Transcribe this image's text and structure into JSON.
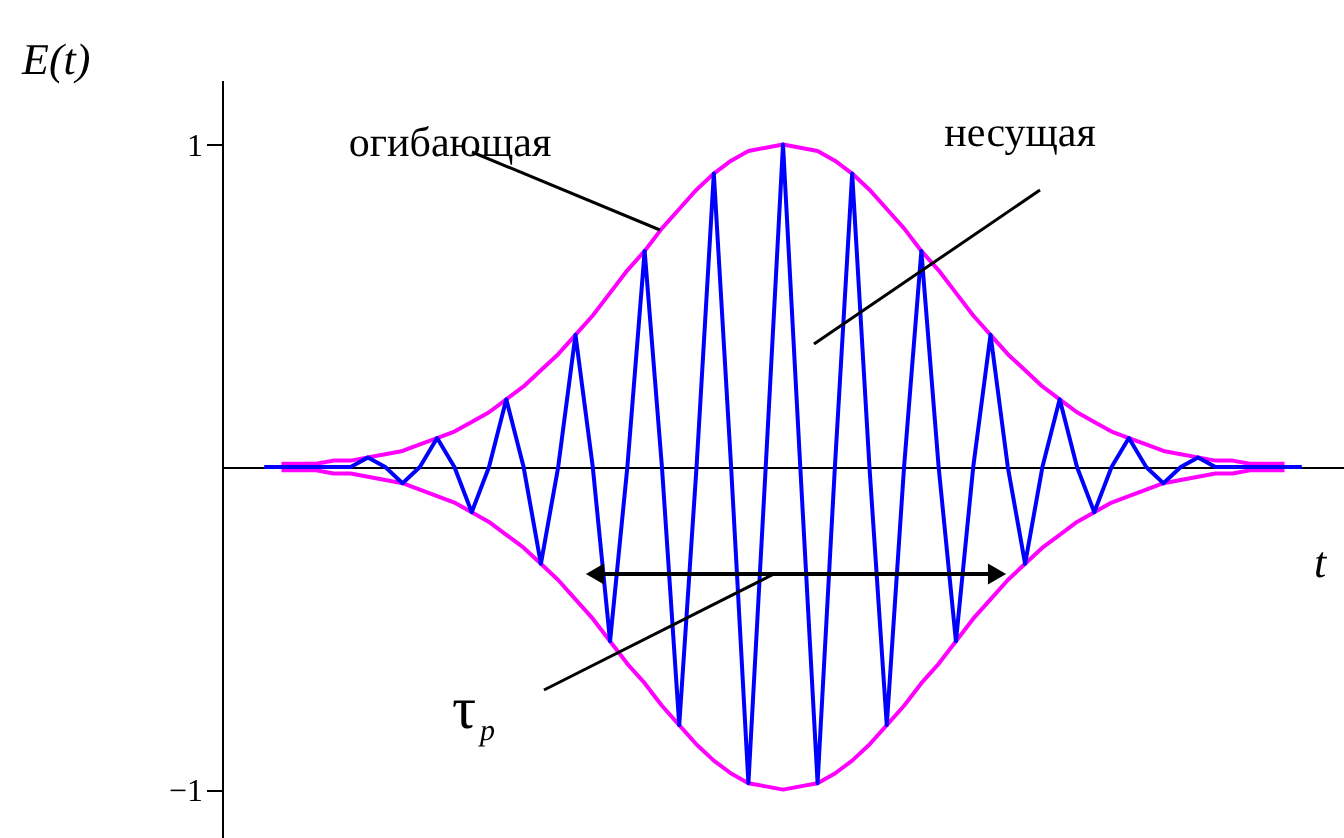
{
  "chart_data": {
    "type": "line",
    "xlabel": "t",
    "ylabel": "E(t)",
    "ylim": [
      -1.15,
      1.2
    ],
    "yticks": [
      {
        "value": -1,
        "label": "−1"
      },
      1
    ],
    "tick_labels": "y",
    "categories": [
      null,
      null,
      null,
      null,
      null,
      null,
      null,
      null,
      null,
      null,
      null,
      null,
      null,
      null,
      null,
      null,
      null,
      null,
      null,
      null,
      null,
      null,
      null,
      null,
      null,
      null,
      null,
      null,
      null,
      null,
      null,
      null,
      null,
      null,
      null,
      null,
      null,
      null,
      null,
      null,
      null,
      null,
      null,
      null,
      null,
      null,
      null,
      null,
      null,
      null,
      null,
      null,
      null,
      null,
      null,
      null,
      null,
      null,
      null,
      null,
      null
    ],
    "series": [
      {
        "color": "#ff00ff",
        "values": [
          null,
          0.01,
          0.01,
          0.01,
          0.02,
          0.02,
          0.03,
          0.04,
          0.05,
          0.07,
          0.09,
          0.11,
          0.14,
          0.17,
          0.21,
          0.25,
          0.3,
          0.35,
          0.41,
          0.47,
          0.54,
          0.61,
          0.67,
          0.74,
          0.8,
          0.86,
          0.91,
          0.95,
          0.98,
          0.99,
          1,
          0.99,
          0.98,
          0.95,
          0.91,
          0.86,
          0.8,
          0.74,
          0.67,
          0.61,
          0.54,
          0.47,
          0.41,
          0.35,
          0.3,
          0.25,
          0.21,
          0.17,
          0.14,
          0.11,
          0.09,
          0.07,
          0.05,
          0.04,
          0.03,
          0.02,
          0.02,
          0.01,
          0.01,
          0.01,
          null
        ]
      },
      {
        "color": "#ff00ff",
        "values": [
          null,
          -0.01,
          -0.01,
          -0.01,
          -0.02,
          -0.02,
          -0.03,
          -0.04,
          -0.05,
          -0.07,
          -0.09,
          -0.11,
          -0.14,
          -0.17,
          -0.21,
          -0.25,
          -0.3,
          -0.35,
          -0.41,
          -0.47,
          -0.54,
          -0.61,
          -0.67,
          -0.74,
          -0.8,
          -0.86,
          -0.91,
          -0.95,
          -0.98,
          -0.99,
          -1,
          -0.99,
          -0.98,
          -0.95,
          -0.91,
          -0.86,
          -0.8,
          -0.74,
          -0.67,
          -0.61,
          -0.54,
          -0.47,
          -0.41,
          -0.35,
          -0.3,
          -0.25,
          -0.21,
          -0.17,
          -0.14,
          -0.11,
          -0.09,
          -0.07,
          -0.05,
          -0.04,
          -0.03,
          -0.02,
          -0.02,
          -0.01,
          -0.01,
          -0.01,
          null
        ]
      },
      {
        "color": "#0000ff",
        "values": [
          0,
          0,
          0,
          0,
          0,
          0,
          0.03,
          0,
          -0.05,
          0,
          0.09,
          0,
          -0.14,
          0,
          0.21,
          0,
          -0.3,
          0,
          0.41,
          0,
          -0.54,
          0,
          0.67,
          0,
          -0.8,
          0,
          0.91,
          0,
          -0.98,
          0,
          1,
          0,
          -0.98,
          0,
          0.91,
          0,
          -0.8,
          0,
          0.67,
          0,
          -0.54,
          0,
          0.41,
          0,
          -0.3,
          0,
          0.21,
          0,
          -0.14,
          0,
          0.09,
          0,
          -0.05,
          0,
          0.03,
          0,
          0,
          0,
          0,
          0,
          0
        ]
      }
    ],
    "annotations": [
      "огибающая",
      "несущая",
      "τ$_{p}$"
    ]
  }
}
